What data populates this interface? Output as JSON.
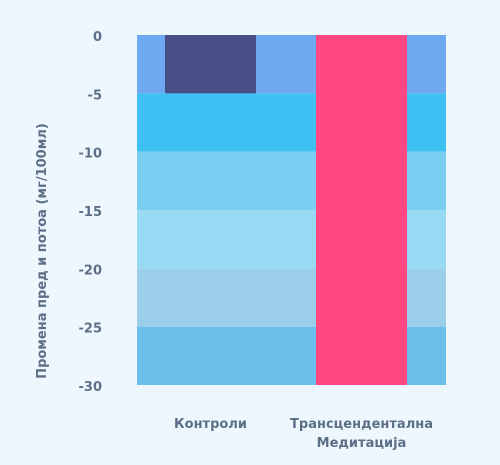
{
  "chart_data": {
    "type": "bar",
    "title": "",
    "xlabel": "",
    "ylabel": "Промена пред и потоа (мг/100мл)",
    "ylim": [
      -30,
      0
    ],
    "yticks": [
      0,
      -5,
      -10,
      -15,
      -20,
      -25,
      -30
    ],
    "grid": false,
    "categories": [
      {
        "lines": [
          "Контроли"
        ]
      },
      {
        "lines": [
          "Трансцендентална",
          "Медитација"
        ]
      }
    ],
    "values": [
      -5,
      -30
    ],
    "bar_colors": [
      "#484f86",
      "#ff4781"
    ],
    "band_colors": [
      "#6ea8f0",
      "#3fc0f3",
      "#7bcdf2",
      "#98daf4",
      "#9bcfe9",
      "#6cbfea"
    ],
    "background": "#eef7fe",
    "text_color": "#5c6f86"
  }
}
